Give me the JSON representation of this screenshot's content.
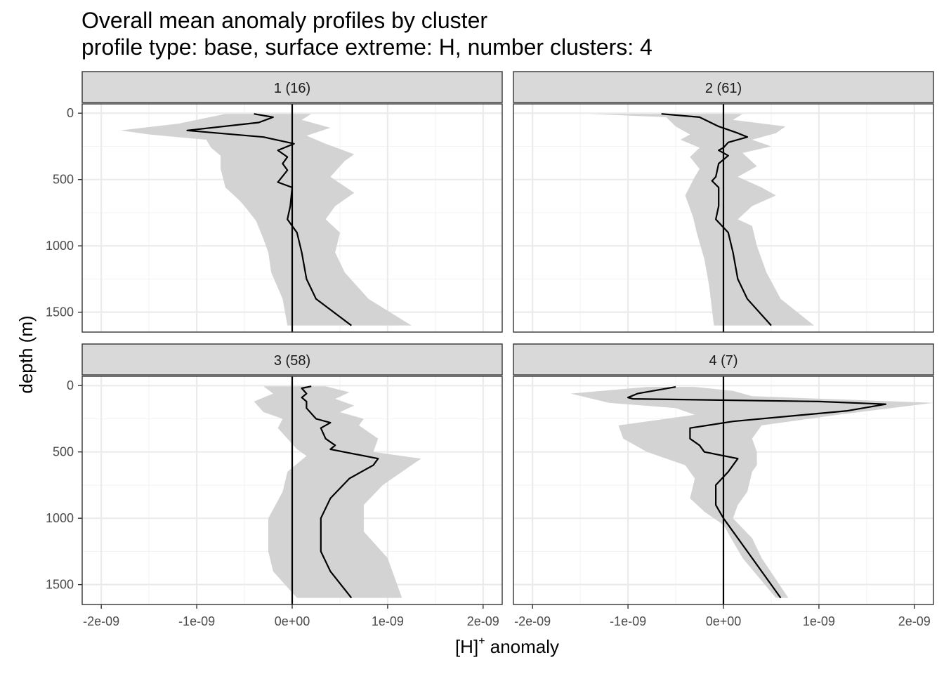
{
  "chart_data": {
    "type": "line",
    "title": "Overall mean anomaly profiles by cluster",
    "subtitle": "profile type: base, surface extreme: H, number clusters: 4",
    "xlabel": "[H]",
    "xlabel_sup": "+",
    "xlabel_suffix": " anomaly",
    "ylabel": "depth (m)",
    "xlim": [
      -2.2e-09,
      2.2e-09
    ],
    "ylim": [
      1650,
      -70
    ],
    "x_ticks": [
      -2e-09,
      -1e-09,
      0,
      1e-09,
      2e-09
    ],
    "x_tick_labels": [
      "-2e-09",
      "-1e-09",
      "0e+00",
      "1e-09",
      "2e-09"
    ],
    "y_ticks": [
      0,
      500,
      1000,
      1500
    ],
    "y_tick_labels": [
      "0",
      "500",
      "1000",
      "1500"
    ],
    "grid": true,
    "panels": [
      {
        "label": "1 (16)",
        "mean": [
          [
            -4e-10,
            5
          ],
          [
            -2e-10,
            30
          ],
          [
            -3.5e-10,
            70
          ],
          [
            -1.1e-09,
            130
          ],
          [
            -3e-10,
            180
          ],
          [
            2e-11,
            230
          ],
          [
            -1.5e-10,
            280
          ],
          [
            -5e-11,
            330
          ],
          [
            -1e-10,
            380
          ],
          [
            -5e-11,
            430
          ],
          [
            -1.5e-10,
            520
          ],
          [
            0,
            560
          ],
          [
            -2e-11,
            700
          ],
          [
            -5e-11,
            800
          ],
          [
            5e-11,
            900
          ],
          [
            1e-10,
            1050
          ],
          [
            1.5e-10,
            1250
          ],
          [
            2.5e-10,
            1400
          ],
          [
            6.2e-10,
            1600
          ]
        ],
        "lower": [
          [
            -7e-10,
            5
          ],
          [
            -1.2e-09,
            80
          ],
          [
            -1.8e-09,
            130
          ],
          [
            -1.5e-09,
            160
          ],
          [
            -9e-10,
            200
          ],
          [
            -8.5e-10,
            260
          ],
          [
            -7.5e-10,
            320
          ],
          [
            -7.5e-10,
            420
          ],
          [
            -7e-10,
            560
          ],
          [
            -5.5e-10,
            660
          ],
          [
            -5e-10,
            700
          ],
          [
            -3.8e-10,
            810
          ],
          [
            -3e-10,
            950
          ],
          [
            -2.5e-10,
            1050
          ],
          [
            -2.2e-10,
            1200
          ],
          [
            -1e-10,
            1400
          ],
          [
            -5e-11,
            1600
          ]
        ],
        "upper": [
          [
            2e-10,
            5
          ],
          [
            1e-10,
            50
          ],
          [
            4e-10,
            110
          ],
          [
            1.5e-10,
            170
          ],
          [
            3.5e-10,
            230
          ],
          [
            5e-10,
            270
          ],
          [
            6.5e-10,
            310
          ],
          [
            5.5e-10,
            360
          ],
          [
            4e-10,
            480
          ],
          [
            6.5e-10,
            600
          ],
          [
            4.5e-10,
            700
          ],
          [
            3.5e-10,
            800
          ],
          [
            5e-10,
            900
          ],
          [
            4.5e-10,
            1050
          ],
          [
            5.5e-10,
            1200
          ],
          [
            8e-10,
            1400
          ],
          [
            1.25e-09,
            1600
          ]
        ]
      },
      {
        "label": "2 (61)",
        "mean": [
          [
            -6.5e-10,
            5
          ],
          [
            -2.5e-10,
            30
          ],
          [
            -5e-11,
            100
          ],
          [
            1.5e-10,
            150
          ],
          [
            2.5e-10,
            180
          ],
          [
            5e-11,
            220
          ],
          [
            0,
            260
          ],
          [
            -5e-11,
            280
          ],
          [
            5e-11,
            320
          ],
          [
            -5e-11,
            380
          ],
          [
            -8e-11,
            480
          ],
          [
            -1.2e-10,
            510
          ],
          [
            -5e-11,
            560
          ],
          [
            -5e-11,
            700
          ],
          [
            -8e-11,
            800
          ],
          [
            5e-11,
            900
          ],
          [
            1e-10,
            1050
          ],
          [
            1.5e-10,
            1250
          ],
          [
            2.5e-10,
            1400
          ],
          [
            5e-10,
            1600
          ]
        ],
        "lower": [
          [
            -1.4e-09,
            5
          ],
          [
            -6e-10,
            30
          ],
          [
            -5e-10,
            100
          ],
          [
            -3.5e-10,
            160
          ],
          [
            -4.5e-10,
            200
          ],
          [
            -2.5e-10,
            260
          ],
          [
            -3.5e-10,
            330
          ],
          [
            -2.5e-10,
            420
          ],
          [
            -3e-10,
            480
          ],
          [
            -4e-10,
            620
          ],
          [
            -3.2e-10,
            780
          ],
          [
            -2.8e-10,
            900
          ],
          [
            -2e-10,
            1100
          ],
          [
            -1.5e-10,
            1300
          ],
          [
            -1e-10,
            1600
          ]
        ],
        "upper": [
          [
            2e-10,
            5
          ],
          [
            1e-10,
            50
          ],
          [
            6.5e-10,
            100
          ],
          [
            5.5e-10,
            150
          ],
          [
            3e-10,
            200
          ],
          [
            5e-10,
            250
          ],
          [
            2e-10,
            300
          ],
          [
            3.5e-10,
            400
          ],
          [
            1.5e-10,
            480
          ],
          [
            4e-10,
            560
          ],
          [
            5.5e-10,
            620
          ],
          [
            3e-10,
            700
          ],
          [
            1.5e-10,
            800
          ],
          [
            3e-10,
            850
          ],
          [
            3.5e-10,
            1000
          ],
          [
            4.5e-10,
            1200
          ],
          [
            6e-10,
            1400
          ],
          [
            9.5e-10,
            1600
          ]
        ]
      },
      {
        "label": "3 (58)",
        "mean": [
          [
            2e-10,
            5
          ],
          [
            1e-10,
            20
          ],
          [
            1.5e-10,
            60
          ],
          [
            1e-10,
            90
          ],
          [
            1.5e-10,
            120
          ],
          [
            1.5e-10,
            170
          ],
          [
            2.5e-10,
            250
          ],
          [
            4e-10,
            280
          ],
          [
            3e-10,
            320
          ],
          [
            3.5e-10,
            400
          ],
          [
            4.5e-10,
            450
          ],
          [
            4e-10,
            480
          ],
          [
            9e-10,
            550
          ],
          [
            8.5e-10,
            600
          ],
          [
            6e-10,
            700
          ],
          [
            4e-10,
            850
          ],
          [
            3e-10,
            1000
          ],
          [
            3e-10,
            1250
          ],
          [
            4e-10,
            1400
          ],
          [
            6.2e-10,
            1600
          ]
        ],
        "lower": [
          [
            -3e-10,
            5
          ],
          [
            -2e-10,
            60
          ],
          [
            -4e-10,
            120
          ],
          [
            -3e-10,
            200
          ],
          [
            -1e-10,
            250
          ],
          [
            -1.5e-10,
            320
          ],
          [
            -5e-11,
            400
          ],
          [
            5e-11,
            480
          ],
          [
            1.5e-10,
            530
          ],
          [
            -5e-11,
            650
          ],
          [
            -1e-10,
            800
          ],
          [
            -2.5e-10,
            1000
          ],
          [
            -2.5e-10,
            1250
          ],
          [
            -2e-10,
            1400
          ],
          [
            5e-11,
            1600
          ]
        ],
        "upper": [
          [
            3.5e-10,
            5
          ],
          [
            6e-10,
            50
          ],
          [
            4.5e-10,
            100
          ],
          [
            6.5e-10,
            150
          ],
          [
            5e-10,
            200
          ],
          [
            7.5e-10,
            250
          ],
          [
            7e-10,
            300
          ],
          [
            9e-10,
            400
          ],
          [
            8.5e-10,
            500
          ],
          [
            1.35e-09,
            550
          ],
          [
            1.15e-09,
            650
          ],
          [
            9.5e-10,
            750
          ],
          [
            7.5e-10,
            900
          ],
          [
            7.5e-10,
            1100
          ],
          [
            1e-09,
            1300
          ],
          [
            1.15e-09,
            1600
          ]
        ]
      },
      {
        "label": "4 (7)",
        "mean": [
          [
            -5e-10,
            10
          ],
          [
            -9e-10,
            60
          ],
          [
            -1e-09,
            90
          ],
          [
            -9.5e-10,
            100
          ],
          [
            1e-09,
            120
          ],
          [
            1.7e-09,
            140
          ],
          [
            1.3e-09,
            190
          ],
          [
            1e-10,
            270
          ],
          [
            -3.5e-10,
            320
          ],
          [
            -3.5e-10,
            400
          ],
          [
            -2.5e-10,
            450
          ],
          [
            -2e-10,
            500
          ],
          [
            1.5e-10,
            550
          ],
          [
            5e-11,
            650
          ],
          [
            -8e-11,
            750
          ],
          [
            -8e-11,
            900
          ],
          [
            0,
            1000
          ],
          [
            1.5e-10,
            1150
          ],
          [
            3e-10,
            1300
          ],
          [
            6e-10,
            1600
          ]
        ],
        "lower": [
          [
            -8e-10,
            10
          ],
          [
            -1.6e-09,
            60
          ],
          [
            -1.2e-09,
            130
          ],
          [
            -5e-10,
            170
          ],
          [
            -3e-10,
            220
          ],
          [
            -1.1e-09,
            300
          ],
          [
            -1.05e-09,
            400
          ],
          [
            -8e-10,
            500
          ],
          [
            -4e-10,
            600
          ],
          [
            -3e-10,
            700
          ],
          [
            -3.5e-10,
            850
          ],
          [
            -2e-10,
            950
          ],
          [
            0,
            1050
          ],
          [
            2e-10,
            1300
          ],
          [
            5.5e-10,
            1600
          ]
        ],
        "upper": [
          [
            -3e-10,
            10
          ],
          [
            1e-10,
            40
          ],
          [
            3e-10,
            80
          ],
          [
            2.2e-09,
            130
          ],
          [
            1.2e-09,
            220
          ],
          [
            4e-10,
            300
          ],
          [
            3e-10,
            400
          ],
          [
            3.5e-10,
            500
          ],
          [
            3.5e-10,
            600
          ],
          [
            3e-10,
            650
          ],
          [
            2.5e-10,
            800
          ],
          [
            1.5e-10,
            900
          ],
          [
            1e-10,
            1000
          ],
          [
            3e-10,
            1150
          ],
          [
            4e-10,
            1300
          ],
          [
            6.8e-10,
            1600
          ]
        ]
      }
    ]
  }
}
